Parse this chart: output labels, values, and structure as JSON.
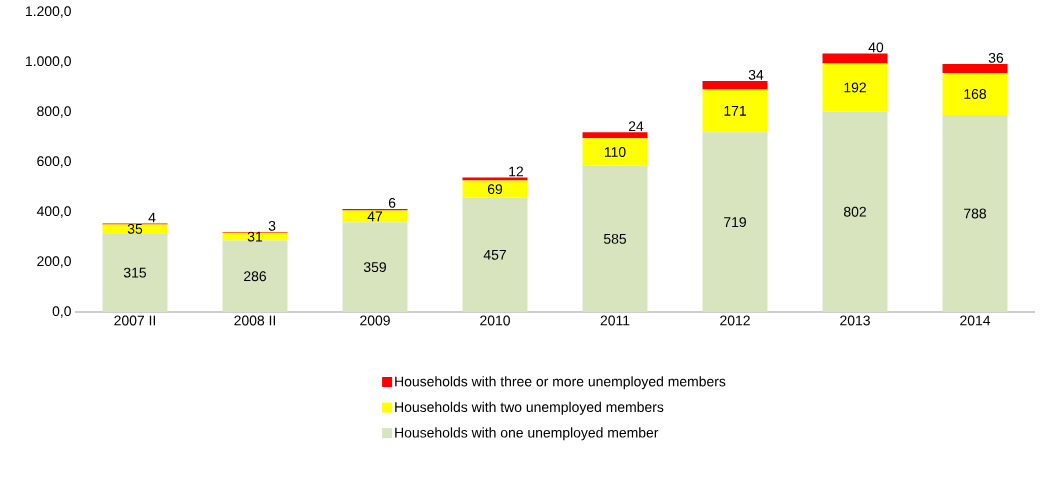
{
  "chart_data": {
    "type": "bar",
    "stacked": true,
    "data_labels": true,
    "legend": "bottom",
    "categories": [
      "2007 II",
      "2008 II",
      "2009",
      "2010",
      "2011",
      "2012",
      "2013",
      "2014"
    ],
    "ylim": [
      0,
      1200
    ],
    "yticks": [
      {
        "value": 0,
        "label": "0,0"
      },
      {
        "value": 200,
        "label": "200,0"
      },
      {
        "value": 400,
        "label": "400,0"
      },
      {
        "value": 600,
        "label": "600,0"
      },
      {
        "value": 800,
        "label": "800,0"
      },
      {
        "value": 1000,
        "label": "1.000,0"
      },
      {
        "value": 1200,
        "label": "1.200,0"
      }
    ],
    "series": [
      {
        "name": "Households with one unemployed member",
        "color": "#d7e4bd",
        "values": [
          315,
          286,
          359,
          457,
          585,
          719,
          802,
          788
        ]
      },
      {
        "name": "Households with two unemployed members",
        "color": "#ffff00",
        "values": [
          35,
          31,
          47,
          69,
          110,
          171,
          192,
          168
        ]
      },
      {
        "name": "Households with three or more unemployed members",
        "color": "#ff0000",
        "values": [
          4,
          3,
          6,
          12,
          24,
          34,
          40,
          36
        ]
      }
    ]
  }
}
